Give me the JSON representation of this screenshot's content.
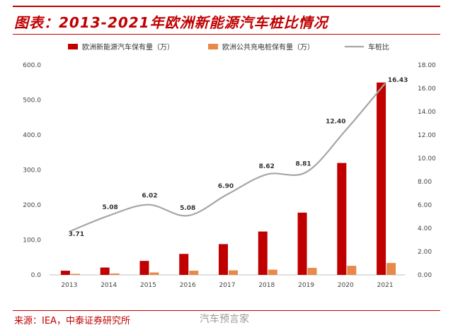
{
  "header": {
    "title": "图表：2013-2021年欧洲新能源汽车桩比情况"
  },
  "footer": {
    "source": "来源：IEA，中泰证券研究所",
    "watermark": "汽车预言家"
  },
  "colors": {
    "ev": "#c00000",
    "charger": "#e8894a",
    "ratio": "#a6a6a6",
    "accent": "#c00000"
  },
  "chart_data": {
    "type": "bar",
    "title": "",
    "categories": [
      "2013",
      "2014",
      "2015",
      "2016",
      "2017",
      "2018",
      "2019",
      "2020",
      "2021"
    ],
    "series": [
      {
        "name": "欧洲新能源汽车保有量（万）",
        "type": "bar",
        "axis": "left",
        "values": [
          12,
          21,
          40,
          60,
          88,
          124,
          178,
          320,
          550
        ]
      },
      {
        "name": "欧洲公共充电桩保有量（万）",
        "type": "bar",
        "axis": "left",
        "values": [
          3,
          4,
          7,
          12,
          13,
          15,
          20,
          26,
          34
        ]
      },
      {
        "name": "车桩比",
        "type": "line",
        "axis": "right",
        "values": [
          3.71,
          5.08,
          6.02,
          5.08,
          6.9,
          8.62,
          8.81,
          12.4,
          16.43
        ]
      }
    ],
    "data_labels": [
      "3.71",
      "5.08",
      "6.02",
      "5.08",
      "6.90",
      "8.62",
      "8.81",
      "12.40",
      "16.43"
    ],
    "y_left": {
      "ylim": [
        0,
        600
      ],
      "ticks": [
        "0.0",
        "100.0",
        "200.0",
        "300.0",
        "400.0",
        "500.0",
        "600.0"
      ]
    },
    "y_right": {
      "ylim": [
        0,
        18
      ],
      "ticks": [
        "0.00",
        "2.00",
        "4.00",
        "6.00",
        "8.00",
        "10.00",
        "12.00",
        "14.00",
        "16.00",
        "18.00"
      ]
    },
    "legend": "top",
    "grid": false
  }
}
